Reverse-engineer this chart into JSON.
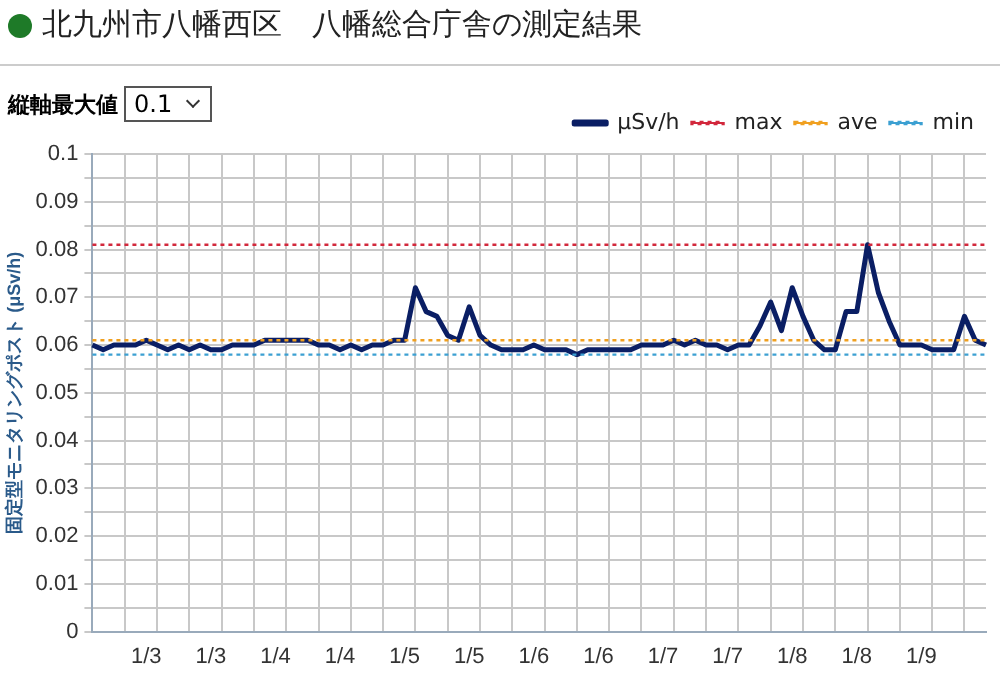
{
  "chart_data": {
    "type": "line",
    "title": "北九州市八幡西区　八幡総合庁舎の測定結果",
    "ylabel": "固定型モニタリングポスト (μSv/h)",
    "annotations": [
      "縦軸最大値",
      "0.1"
    ],
    "categories": [
      null,
      null,
      null,
      null,
      null,
      "1/3",
      null,
      null,
      null,
      null,
      null,
      "1/3",
      null,
      null,
      null,
      null,
      null,
      "1/4",
      null,
      null,
      null,
      null,
      null,
      "1/4",
      null,
      null,
      null,
      null,
      null,
      "1/5",
      null,
      null,
      null,
      null,
      null,
      "1/5",
      null,
      null,
      null,
      null,
      null,
      "1/6",
      null,
      null,
      null,
      null,
      null,
      "1/6",
      null,
      null,
      null,
      null,
      null,
      "1/7",
      null,
      null,
      null,
      null,
      null,
      "1/7",
      null,
      null,
      null,
      null,
      null,
      "1/8",
      null,
      null,
      null,
      null,
      null,
      "1/8",
      null,
      null,
      null,
      null,
      null,
      "1/9",
      null,
      null,
      null,
      null,
      null,
      null
    ],
    "series": [
      {
        "name": "μSv/h",
        "color": "#0a1e64",
        "values": [
          0.06,
          0.059,
          0.06,
          0.06,
          0.06,
          0.061,
          0.06,
          0.059,
          0.06,
          0.059,
          0.06,
          0.059,
          0.059,
          0.06,
          0.06,
          0.06,
          0.061,
          0.061,
          0.061,
          0.061,
          0.061,
          0.06,
          0.06,
          0.059,
          0.06,
          0.059,
          0.06,
          0.06,
          0.061,
          0.061,
          0.072,
          0.067,
          0.066,
          0.062,
          0.061,
          0.068,
          0.062,
          0.06,
          0.059,
          0.059,
          0.059,
          0.06,
          0.059,
          0.059,
          0.059,
          0.058,
          0.059,
          0.059,
          0.059,
          0.059,
          0.059,
          0.06,
          0.06,
          0.06,
          0.061,
          0.06,
          0.061,
          0.06,
          0.06,
          0.059,
          0.06,
          0.06,
          0.064,
          0.069,
          0.063,
          0.072,
          0.066,
          0.061,
          0.059,
          0.059,
          0.067,
          0.067,
          0.081,
          0.071,
          0.065,
          0.06,
          0.06,
          0.06,
          0.059,
          0.059,
          0.059,
          0.066,
          0.061,
          0.06
        ]
      }
    ],
    "ref_lines": [
      {
        "axis": "y",
        "value": 0.081,
        "label": "max",
        "color": "#d2283c",
        "line_style": "dotted"
      },
      {
        "axis": "y",
        "value": 0.061,
        "label": "ave",
        "color": "#f0a020",
        "line_style": "dotted"
      },
      {
        "axis": "y",
        "value": 0.058,
        "label": "min",
        "color": "#3ca0d2",
        "line_style": "dotted"
      }
    ],
    "ylim": [
      0,
      0.1
    ],
    "yticks": [
      0,
      {
        "value": 0.005,
        "label": null
      },
      0.01,
      {
        "value": 0.015,
        "label": null
      },
      0.02,
      {
        "value": 0.025,
        "label": null
      },
      0.03,
      {
        "value": 0.035,
        "label": null
      },
      0.04,
      {
        "value": 0.045,
        "label": null
      },
      0.05,
      {
        "value": 0.055,
        "label": null
      },
      0.06,
      {
        "value": 0.065,
        "label": null
      },
      0.07,
      {
        "value": 0.075,
        "label": null
      },
      0.08,
      {
        "value": 0.085,
        "label": null
      },
      0.09,
      {
        "value": 0.095,
        "label": null
      },
      0.1
    ],
    "grid": true,
    "legend": "top right",
    "marker": "none",
    "line_style": "solid"
  }
}
